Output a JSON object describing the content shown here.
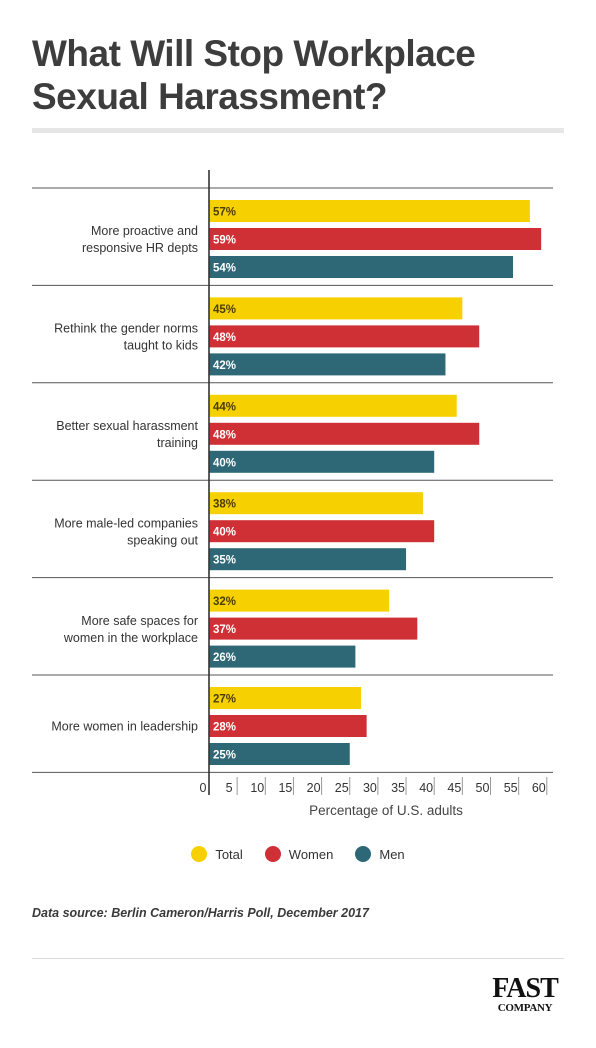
{
  "title": "What Will Stop Workplace Sexual Harassment?",
  "source": "Data source: Berlin Cameron/Harris Poll, December 2017",
  "logo": {
    "line1": "FAST",
    "line2": "COMPANY"
  },
  "colors": {
    "Total": "#f7d000",
    "Women": "#cf3035",
    "Men": "#2e6776",
    "axis": "#333333",
    "separator": "#555555"
  },
  "chart_data": {
    "type": "bar",
    "orientation": "horizontal",
    "categories": [
      [
        "More proactive and",
        "responsive HR depts"
      ],
      [
        "Rethink the gender norms",
        "taught to kids"
      ],
      [
        "Better sexual harassment",
        "training"
      ],
      [
        "More male-led companies",
        "speaking out"
      ],
      [
        "More safe spaces for",
        "women in the workplace"
      ],
      [
        "More women in leadership"
      ]
    ],
    "series": [
      {
        "name": "Total",
        "values": [
          57,
          45,
          44,
          38,
          32,
          27
        ],
        "labels": [
          "57%",
          "45%",
          "44%",
          "38%",
          "32%",
          "27%"
        ]
      },
      {
        "name": "Women",
        "values": [
          59,
          48,
          48,
          40,
          37,
          28
        ],
        "labels": [
          "59%",
          "48%",
          "48%",
          "40%",
          "37%",
          "28%"
        ]
      },
      {
        "name": "Men",
        "values": [
          54,
          42,
          40,
          35,
          26,
          25
        ],
        "labels": [
          "54%",
          "42%",
          "40%",
          "35%",
          "26%",
          "25%"
        ]
      }
    ],
    "xlabel": "Percentage of U.S. adults",
    "xticks": [
      0,
      5,
      10,
      15,
      20,
      25,
      30,
      35,
      40,
      45,
      50,
      55,
      60
    ],
    "xlim": [
      0,
      60
    ],
    "legend": "bottom-center",
    "grid": false
  }
}
